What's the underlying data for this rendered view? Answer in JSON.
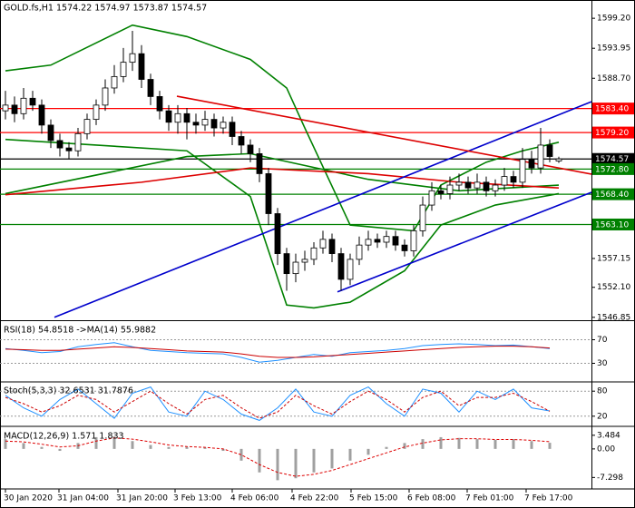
{
  "chart_data": [
    {
      "type": "candlestick",
      "title": "GOLD.fs,H1  1574.22 1574.97 1573.87 1574.57",
      "open": [
        1583.0,
        1584.0,
        1582.5,
        1585.2,
        1584.0,
        1580.5,
        1577.8,
        1576.5,
        1576.0,
        1579.0,
        1581.5,
        1584.0,
        1587.0,
        1589.0,
        1591.5,
        1593.0,
        1588.5,
        1585.5,
        1583.0,
        1581.0,
        1582.5,
        1581.0,
        1580.5,
        1581.5,
        1580.0,
        1581.0,
        1578.5,
        1577.0,
        1575.5,
        1572.0,
        1565.0,
        1558.0,
        1554.5,
        1556.5,
        1557.0,
        1559.0,
        1560.5,
        1558.0,
        1553.5,
        1557.0,
        1559.5,
        1560.5,
        1560.0,
        1561.0,
        1559.5,
        1558.5,
        1562.0,
        1566.5,
        1569.0,
        1568.5,
        1570.0,
        1570.5,
        1569.5,
        1570.5,
        1569.0,
        1570.0,
        1571.5,
        1570.5,
        1574.5,
        1573.0,
        1577.0,
        1574.22
      ],
      "high": [
        1586.5,
        1585.5,
        1587,
        1586.5,
        1585,
        1581.5,
        1579,
        1577.5,
        1580,
        1582.5,
        1585,
        1588.5,
        1591,
        1594,
        1597,
        1594.5,
        1589.5,
        1586.5,
        1584,
        1584,
        1583.5,
        1582.5,
        1583,
        1582.5,
        1582,
        1582,
        1579.5,
        1578,
        1576.5,
        1573,
        1566,
        1559,
        1558,
        1558.5,
        1560,
        1562,
        1561.5,
        1559,
        1558,
        1561,
        1562,
        1561.5,
        1562,
        1562,
        1560.5,
        1563,
        1568,
        1570.5,
        1570,
        1571.5,
        1572,
        1571.5,
        1572,
        1571.5,
        1571,
        1573,
        1572.5,
        1576.5,
        1576,
        1580,
        1578,
        1574.97
      ],
      "low": [
        1581.5,
        1581,
        1581.5,
        1583,
        1579,
        1576.5,
        1575,
        1574.5,
        1575,
        1578,
        1580.5,
        1583,
        1586,
        1588,
        1590,
        1587,
        1584,
        1581.5,
        1579.5,
        1579,
        1578,
        1579,
        1579.5,
        1578.5,
        1579,
        1577,
        1575.5,
        1574,
        1570.5,
        1563,
        1556,
        1551.5,
        1553,
        1555,
        1556,
        1558,
        1556.5,
        1551.5,
        1552.5,
        1556,
        1558.5,
        1559,
        1559,
        1558.5,
        1557.5,
        1557.5,
        1561,
        1565.5,
        1567.5,
        1567.5,
        1569,
        1568.5,
        1568.5,
        1568,
        1568,
        1569,
        1569.5,
        1569.5,
        1572,
        1572,
        1574,
        1573.87
      ],
      "close": [
        1584.0,
        1582.5,
        1585.2,
        1584.0,
        1580.5,
        1577.8,
        1576.5,
        1576.0,
        1579.0,
        1581.5,
        1584.0,
        1587.0,
        1589.0,
        1591.5,
        1593.0,
        1588.5,
        1585.5,
        1583.0,
        1581.0,
        1582.5,
        1581.0,
        1580.5,
        1581.5,
        1580.0,
        1581.0,
        1578.5,
        1577.0,
        1575.5,
        1572.0,
        1565.0,
        1558.0,
        1554.5,
        1556.5,
        1557.0,
        1559.0,
        1560.5,
        1558.0,
        1553.5,
        1557.0,
        1559.5,
        1560.5,
        1560.0,
        1561.0,
        1559.5,
        1558.5,
        1562.0,
        1566.5,
        1569.0,
        1568.5,
        1570.0,
        1570.5,
        1569.5,
        1570.5,
        1569.0,
        1570.0,
        1571.5,
        1570.5,
        1574.5,
        1573.0,
        1577.0,
        1575.0,
        1574.57
      ],
      "bull_color": "#ffffff",
      "bear_color": "#000000",
      "wick_color": "#000000",
      "ylim": [
        1546.5,
        1602.4
      ],
      "yticks": [
        {
          "value": 1599.2,
          "label": "1599.20"
        },
        {
          "value": 1593.95,
          "label": "1593.95"
        },
        {
          "value": 1588.7,
          "label": "1588.70"
        },
        {
          "value": 1557.15,
          "label": "1557.15"
        },
        {
          "value": 1552.1,
          "label": "1552.10"
        },
        {
          "value": 1546.85,
          "label": "1546.85"
        }
      ],
      "xticks": [
        {
          "value": 0,
          "label": "30 Jan 2020"
        },
        {
          "value": 5.9,
          "label": "31 Jan 04:00"
        },
        {
          "value": 12.4,
          "label": "31 Jan 20:00"
        },
        {
          "value": 18.7,
          "label": "3 Feb 13:00"
        },
        {
          "value": 25,
          "label": "4 Feb 06:00"
        },
        {
          "value": 31.6,
          "label": "4 Feb 22:00"
        },
        {
          "value": 38.1,
          "label": "5 Feb 15:00"
        },
        {
          "value": 44.5,
          "label": "6 Feb 08:00"
        },
        {
          "value": 50.9,
          "label": "7 Feb 01:00"
        },
        {
          "value": 57.4,
          "label": "7 Feb 17:00"
        }
      ],
      "levels": [
        {
          "value": 1583.4,
          "label": "1583.40",
          "color": "#ff0000"
        },
        {
          "value": 1579.2,
          "label": "1579.20",
          "color": "#ff0000"
        },
        {
          "value": 1574.57,
          "color": "#000000"
        },
        {
          "value": 1572.8,
          "label": "1572.80",
          "color": "#008000"
        },
        {
          "value": 1568.4,
          "label": "1568.40",
          "color": "#008000"
        },
        {
          "value": 1563.1,
          "label": "1563.10",
          "color": "#008000"
        }
      ],
      "overlays": [
        {
          "color": "#008000",
          "x": [
            0,
            5,
            14,
            20,
            27,
            31,
            33,
            38,
            45,
            48,
            53,
            57,
            61
          ],
          "values": [
            1590,
            1591,
            1598,
            1596,
            1592,
            1587,
            1580,
            1563,
            1562,
            1570,
            1574,
            1576,
            1577.5
          ]
        },
        {
          "color": "#008000",
          "x": [
            0,
            10,
            20,
            27,
            31,
            34,
            38,
            44,
            48,
            54,
            61
          ],
          "values": [
            1578,
            1577,
            1576,
            1568,
            1549,
            1548.5,
            1549.5,
            1555,
            1563,
            1566.5,
            1568.5
          ]
        },
        {
          "color": "#008000",
          "x": [
            0,
            20,
            27,
            40,
            50,
            61
          ],
          "values": [
            1568.5,
            1575,
            1575.5,
            1571,
            1569,
            1570
          ]
        },
        {
          "color": "#dd0000",
          "x": [
            0,
            15,
            27,
            40,
            50,
            61
          ],
          "values": [
            1568.3,
            1570.5,
            1573,
            1572,
            1570.5,
            1569.5
          ]
        },
        {
          "color": "#0000cc",
          "x": [
            5.4,
            64.6
          ],
          "values": [
            1546.85,
            1584.6
          ]
        },
        {
          "color": "#0000cc",
          "x": [
            36.6,
            64.6
          ],
          "values": [
            1551.3,
            1568.74
          ]
        },
        {
          "color": "#dd0000",
          "x": [
            18.9,
            64.6
          ],
          "values": [
            1585.56,
            1571.91
          ]
        }
      ]
    },
    {
      "type": "line",
      "title": "RSI(18) 54.8518 ->MA(14) 55.9882",
      "ylim": [
        0,
        100
      ],
      "yticks": [
        70,
        30
      ],
      "grid": true,
      "x": [
        0,
        2,
        4,
        6,
        8,
        10,
        12,
        14,
        16,
        18,
        20,
        22,
        24,
        26,
        28,
        30,
        32,
        34,
        36,
        38,
        40,
        42,
        44,
        46,
        48,
        50,
        52,
        54,
        56,
        58,
        60
      ],
      "series": [
        {
          "color": "#1e90ff",
          "values": [
            55,
            52,
            48,
            50,
            58,
            62,
            65,
            58,
            52,
            50,
            48,
            47,
            46,
            40,
            32,
            35,
            40,
            45,
            42,
            48,
            50,
            52,
            55,
            60,
            62,
            63,
            62,
            60,
            61,
            58,
            55
          ]
        },
        {
          "color": "#cc0000",
          "values": [
            54,
            53,
            52,
            52,
            54,
            56,
            58,
            57,
            55,
            53,
            51,
            50,
            49,
            46,
            42,
            40,
            40,
            41,
            43,
            45,
            47,
            49,
            51,
            53,
            55,
            57,
            58,
            59,
            59,
            58,
            56
          ]
        }
      ]
    },
    {
      "type": "line",
      "title": "Stoch(5,3,3) 32.6531 31.7876",
      "ylim": [
        0,
        100
      ],
      "yticks": [
        80,
        20
      ],
      "grid": true,
      "x": [
        0,
        2,
        4,
        6,
        8,
        10,
        12,
        14,
        16,
        18,
        20,
        22,
        24,
        26,
        28,
        30,
        32,
        34,
        36,
        38,
        40,
        42,
        44,
        46,
        48,
        50,
        52,
        54,
        56,
        58,
        60
      ],
      "series": [
        {
          "color": "#1e90ff",
          "values": [
            70,
            40,
            20,
            60,
            85,
            50,
            15,
            75,
            90,
            30,
            20,
            80,
            60,
            25,
            10,
            40,
            85,
            30,
            20,
            70,
            90,
            50,
            20,
            85,
            75,
            30,
            80,
            60,
            85,
            40,
            32.65
          ]
        },
        {
          "color": "#cc0000",
          "dash": true,
          "values": [
            65,
            50,
            30,
            45,
            70,
            60,
            30,
            55,
            80,
            50,
            25,
            60,
            70,
            40,
            15,
            30,
            70,
            45,
            25,
            55,
            80,
            60,
            30,
            65,
            80,
            45,
            65,
            65,
            75,
            55,
            31.79
          ]
        }
      ]
    },
    {
      "type": "macd",
      "title": "MACD(12,26,9) 1.571 1.833",
      "ylim": [
        -10,
        5.3
      ],
      "yticks": [
        3.484,
        {
          "value": 0,
          "label": "0.00"
        },
        -7.298
      ],
      "x": [
        0,
        2,
        4,
        6,
        8,
        10,
        12,
        14,
        16,
        18,
        20,
        22,
        24,
        26,
        28,
        30,
        32,
        34,
        36,
        38,
        40,
        42,
        44,
        46,
        48,
        50,
        52,
        54,
        56,
        58,
        60
      ],
      "series": [
        {
          "color": "#a0a0a0",
          "mark": "bar",
          "values": [
            2.5,
            1.5,
            0.5,
            -0.5,
            1.5,
            3,
            3.2,
            2,
            1,
            0.5,
            0.5,
            0.3,
            -0.5,
            -3,
            -6,
            -8,
            -7.5,
            -6,
            -5,
            -3,
            -1.5,
            0.5,
            1.5,
            2.5,
            3,
            2.8,
            2.5,
            2.3,
            2.5,
            2,
            1.57
          ]
        },
        {
          "color": "#dd0000",
          "mark": "line",
          "dash": true,
          "values": [
            2,
            1.8,
            1.2,
            0.5,
            0.8,
            2,
            2.8,
            2.5,
            1.8,
            1,
            0.6,
            0.4,
            0,
            -1.5,
            -4,
            -6,
            -7,
            -6.5,
            -5.5,
            -4,
            -2.5,
            -1,
            0.5,
            1.5,
            2.3,
            2.6,
            2.6,
            2.4,
            2.4,
            2.2,
            1.83
          ]
        }
      ]
    }
  ]
}
